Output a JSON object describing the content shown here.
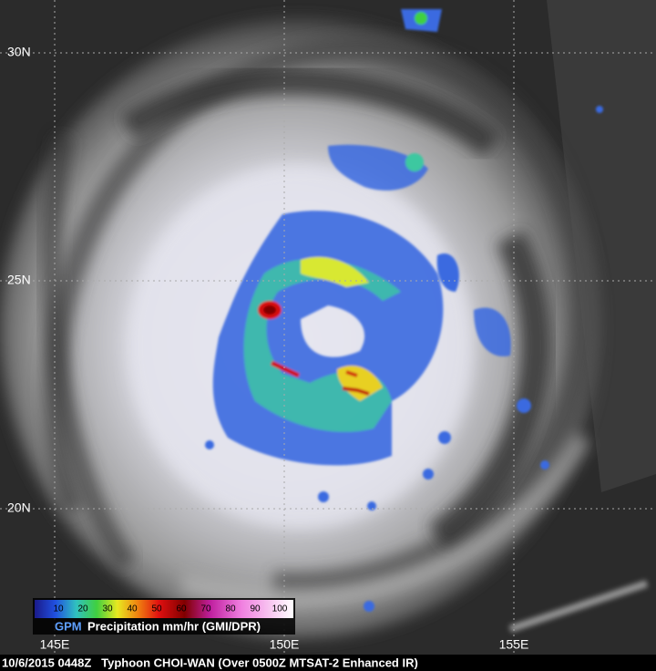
{
  "map": {
    "lat_labels": [
      "30N",
      "25N",
      "20N"
    ],
    "lon_labels": [
      "145E",
      "150E",
      "155E"
    ],
    "legend": {
      "brand": "GPM",
      "title": "Precipitation mm/hr (GMI/DPR)",
      "ticks": [
        10,
        20,
        30,
        40,
        50,
        60,
        70,
        80,
        90,
        100
      ]
    },
    "caption": "10/6/2015 0448Z   Typhoon CHOI-WAN (Over 0500Z MTSAT-2 Enhanced IR)"
  }
}
